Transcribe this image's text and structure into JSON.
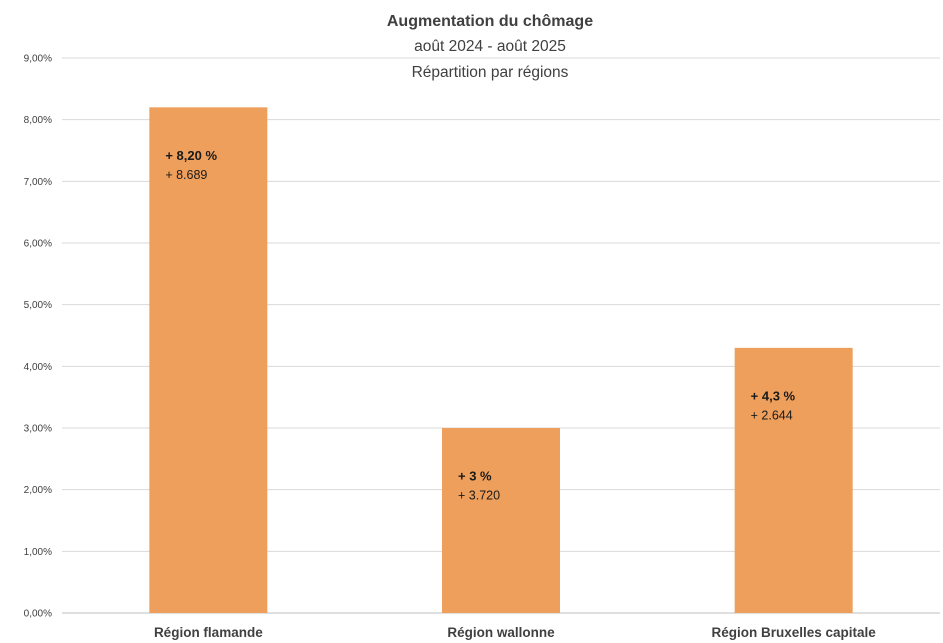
{
  "chart_data": {
    "type": "bar",
    "title": "Augmentation du chômage",
    "subtitle_lines": [
      "août 2024 - août 2025",
      "Répartition par régions"
    ],
    "xlabel": "",
    "ylabel": "",
    "ylim": [
      0,
      9
    ],
    "yticks": [
      "0,00%",
      "1,00%",
      "2,00%",
      "3,00%",
      "4,00%",
      "5,00%",
      "6,00%",
      "7,00%",
      "8,00%",
      "9,00%"
    ],
    "grid": true,
    "legend": "none",
    "bar_color": "#EE9F5B",
    "categories": [
      "Région flamande",
      "Région wallonne",
      "Région Bruxelles capitale"
    ],
    "values": [
      8.2,
      3.0,
      4.3
    ],
    "data_labels": [
      {
        "percent": "+ 8,20 %",
        "count": "+ 8.689"
      },
      {
        "percent": "+ 3 %",
        "count": "+ 3.720"
      },
      {
        "percent": "+ 4,3 %",
        "count": "+ 2.644"
      }
    ]
  }
}
